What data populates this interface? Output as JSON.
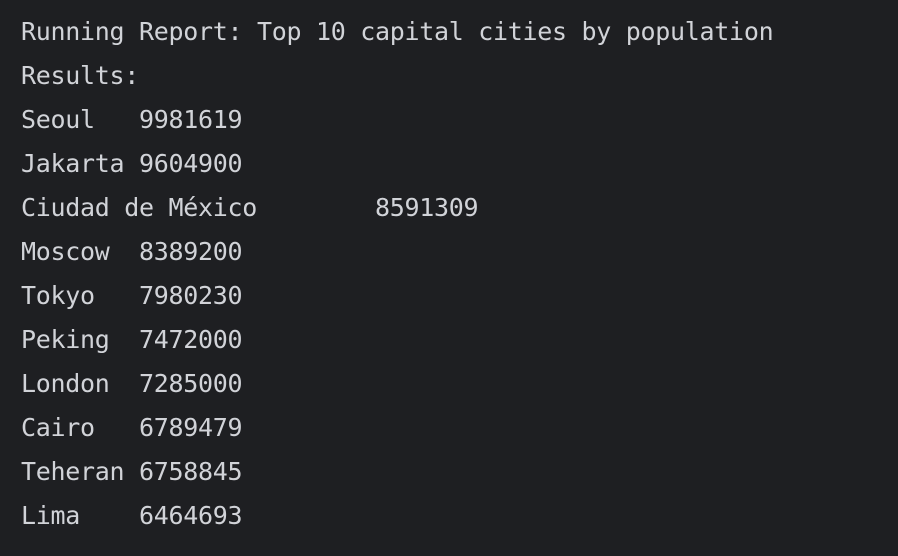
{
  "console": {
    "header": "Running Report: Top 10 capital cities by population",
    "results_label": "Results:",
    "rows": [
      {
        "city": "Seoul",
        "sep": "\t",
        "population": "9981619"
      },
      {
        "city": "Jakarta",
        "sep": "\t",
        "population": "9604900"
      },
      {
        "city": "Ciudad de México",
        "sep": "\t",
        "population": "8591309"
      },
      {
        "city": "Moscow",
        "sep": "\t",
        "population": "8389200"
      },
      {
        "city": "Tokyo",
        "sep": "\t",
        "population": "7980230"
      },
      {
        "city": "Peking",
        "sep": "\t",
        "population": "7472000"
      },
      {
        "city": "London",
        "sep": "\t",
        "population": "7285000"
      },
      {
        "city": "Cairo",
        "sep": "\t",
        "population": "6789479"
      },
      {
        "city": "Teheran",
        "sep": "\t",
        "population": "6758845"
      },
      {
        "city": "Lima",
        "sep": "\t",
        "population": "6464693"
      }
    ]
  }
}
